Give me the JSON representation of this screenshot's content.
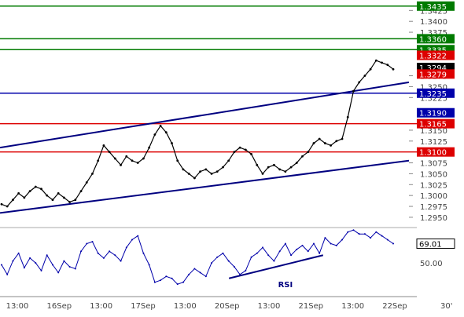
{
  "chart_data": {
    "type": "line",
    "timeframe": "30'",
    "x_ticks": [
      "13:00",
      "16Sep",
      "13:00",
      "17Sep",
      "13:00",
      "20Sep",
      "13:00",
      "21Sep",
      "13:00",
      "22Sep"
    ],
    "price_axis": {
      "ylim": [
        1.293,
        1.344
      ],
      "ticks": [
        "1.3425",
        "1.3400",
        "1.3375",
        "1.3275",
        "1.3250",
        "1.3225",
        "1.3150",
        "1.3125",
        "1.3075",
        "1.3050",
        "1.3025",
        "1.3000",
        "1.2975",
        "1.2950"
      ]
    },
    "horizontal_levels": [
      {
        "label": "1.3435",
        "value": 1.3435,
        "color": "#007a00"
      },
      {
        "label": "1.3360",
        "value": 1.336,
        "color": "#007a00"
      },
      {
        "label": "1.3335",
        "value": 1.3335,
        "color": "#007a00"
      },
      {
        "label": "1.3235",
        "value": 1.3235,
        "color": "#0000aa"
      },
      {
        "label": "1.3165",
        "value": 1.3165,
        "color": "#dd0000"
      },
      {
        "label": "1.3100",
        "value": 1.31,
        "color": "#dd0000"
      }
    ],
    "price_flags": [
      {
        "label": "1.3322",
        "value": 1.3322,
        "color": "#dd0000"
      },
      {
        "label": "1.3294",
        "value": 1.3294,
        "color": "#000000"
      },
      {
        "label": "1.3279",
        "value": 1.3279,
        "color": "#dd0000"
      },
      {
        "label": "1.3190",
        "value": 1.319,
        "color": "#0000aa"
      }
    ],
    "trendlines": [
      {
        "name": "upper-channel",
        "from": [
          0,
          1.311
        ],
        "to": [
          1,
          1.326
        ],
        "color": "#000080"
      },
      {
        "name": "lower-channel",
        "from": [
          0,
          1.296
        ],
        "to": [
          1,
          1.308
        ],
        "color": "#000080"
      }
    ],
    "price_series": [
      1.298,
      1.2975,
      1.299,
      1.3005,
      1.2995,
      1.301,
      1.302,
      1.3015,
      1.3,
      1.299,
      1.3005,
      1.2995,
      1.2985,
      1.299,
      1.301,
      1.303,
      1.305,
      1.308,
      1.3115,
      1.31,
      1.3085,
      1.307,
      1.309,
      1.308,
      1.3075,
      1.3085,
      1.311,
      1.314,
      1.316,
      1.3145,
      1.312,
      1.308,
      1.306,
      1.305,
      1.304,
      1.3055,
      1.306,
      1.305,
      1.3055,
      1.3065,
      1.308,
      1.31,
      1.311,
      1.3105,
      1.3095,
      1.307,
      1.305,
      1.3065,
      1.307,
      1.306,
      1.3055,
      1.3065,
      1.3075,
      1.309,
      1.31,
      1.312,
      1.313,
      1.312,
      1.3115,
      1.3125,
      1.313,
      1.318,
      1.324,
      1.326,
      1.3275,
      1.329,
      1.331,
      1.3305,
      1.33,
      1.329
    ],
    "rsi": {
      "label": "RSI",
      "value_label": "69.01",
      "ylim": [
        20,
        85
      ],
      "ticks": [
        "50.00"
      ],
      "series": [
        48,
        38,
        52,
        60,
        45,
        55,
        50,
        42,
        58,
        48,
        40,
        52,
        46,
        44,
        62,
        70,
        72,
        60,
        55,
        62,
        58,
        52,
        66,
        74,
        78,
        60,
        48,
        30,
        32,
        36,
        34,
        28,
        30,
        38,
        44,
        40,
        36,
        50,
        56,
        60,
        52,
        46,
        38,
        42,
        56,
        60,
        66,
        58,
        52,
        62,
        70,
        58,
        64,
        68,
        62,
        70,
        60,
        76,
        70,
        68,
        74,
        82,
        84,
        80,
        80,
        76,
        82,
        78,
        74,
        70
      ],
      "trendline": {
        "from": [
          0.56,
          34
        ],
        "to": [
          0.79,
          58
        ],
        "color": "#000080"
      }
    }
  }
}
